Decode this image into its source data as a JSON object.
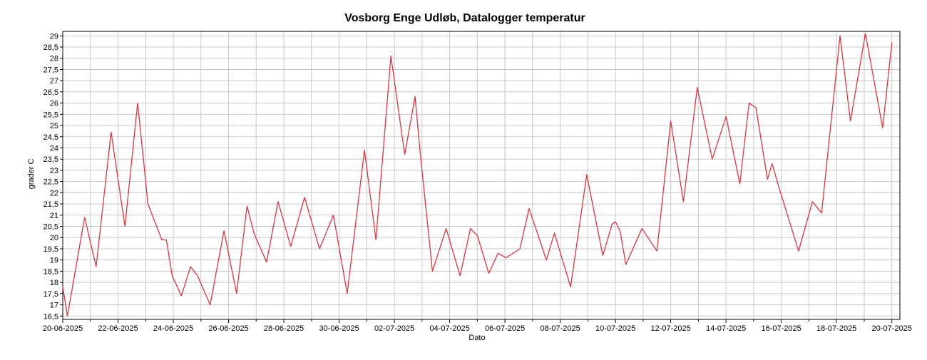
{
  "chart_data": {
    "type": "line",
    "title": "Vosborg Enge Udløb, Datalogger temperatur",
    "xlabel": "Dato",
    "ylabel": "grader C",
    "grid": true,
    "minor_grid": true,
    "xlim": [
      "2025-06-20T00:00",
      "2025-07-20T07:00"
    ],
    "ylim": [
      16.35,
      29.2
    ],
    "xticks": [
      {
        "value": "2025-06-20T00:00",
        "label": "20-06-2025"
      },
      {
        "value": "2025-06-22T00:00",
        "label": "22-06-2025"
      },
      {
        "value": "2025-06-24T00:00",
        "label": "24-06-2025"
      },
      {
        "value": "2025-06-26T00:00",
        "label": "26-06-2025"
      },
      {
        "value": "2025-06-28T00:00",
        "label": "28-06-2025"
      },
      {
        "value": "2025-06-30T00:00",
        "label": "30-06-2025"
      },
      {
        "value": "2025-07-02T00:00",
        "label": "02-07-2025"
      },
      {
        "value": "2025-07-04T00:00",
        "label": "04-07-2025"
      },
      {
        "value": "2025-07-06T00:00",
        "label": "06-07-2025"
      },
      {
        "value": "2025-07-08T00:00",
        "label": "08-07-2025"
      },
      {
        "value": "2025-07-10T00:00",
        "label": "10-07-2025"
      },
      {
        "value": "2025-07-12T00:00",
        "label": "12-07-2025"
      },
      {
        "value": "2025-07-14T00:00",
        "label": "14-07-2025"
      },
      {
        "value": "2025-07-16T00:00",
        "label": "16-07-2025"
      },
      {
        "value": "2025-07-18T00:00",
        "label": "18-07-2025"
      },
      {
        "value": "2025-07-20T00:00",
        "label": "20-07-2025"
      }
    ],
    "yticks": [
      {
        "value": 16.5,
        "label": "16,5"
      },
      17,
      {
        "value": 17.5,
        "label": "17,5"
      },
      18,
      {
        "value": 18.5,
        "label": "18,5"
      },
      19,
      {
        "value": 19.5,
        "label": "19,5"
      },
      20,
      {
        "value": 20.5,
        "label": "20,5"
      },
      21,
      {
        "value": 21.5,
        "label": "21,5"
      },
      22,
      {
        "value": 22.5,
        "label": "22,5"
      },
      23,
      {
        "value": 23.5,
        "label": "23,5"
      },
      24,
      {
        "value": 24.5,
        "label": "24,5"
      },
      25,
      {
        "value": 25.5,
        "label": "25,5"
      },
      26,
      {
        "value": 26.5,
        "label": "26,5"
      },
      27,
      {
        "value": 27.5,
        "label": "27,5"
      },
      28,
      {
        "value": 28.5,
        "label": "28,5"
      },
      29
    ],
    "x": [
      "2025-06-20T00:00",
      "2025-06-20T04:00",
      "2025-06-20T19:00",
      "2025-06-21T05:00",
      "2025-06-21T18:00",
      "2025-06-22T06:00",
      "2025-06-22T17:00",
      "2025-06-23T02:00",
      "2025-06-23T14:00",
      "2025-06-23T18:00",
      "2025-06-23T23:00",
      "2025-06-24T07:00",
      "2025-06-24T15:00",
      "2025-06-24T21:00",
      "2025-06-25T08:00",
      "2025-06-25T20:00",
      "2025-06-26T07:00",
      "2025-06-26T16:00",
      "2025-06-26T22:00",
      "2025-06-27T09:00",
      "2025-06-27T19:00",
      "2025-06-28T06:00",
      "2025-06-28T18:00",
      "2025-06-29T07:00",
      "2025-06-29T19:00",
      "2025-06-30T07:00",
      "2025-06-30T22:00",
      "2025-07-01T08:00",
      "2025-07-01T21:00",
      "2025-07-02T09:00",
      "2025-07-02T18:00",
      "2025-07-02T22:00",
      "2025-07-03T09:00",
      "2025-07-03T21:00",
      "2025-07-04T09:00",
      "2025-07-04T18:00",
      "2025-07-05T00:00",
      "2025-07-05T10:00",
      "2025-07-05T18:00",
      "2025-07-06T01:00",
      "2025-07-06T07:00",
      "2025-07-06T13:00",
      "2025-07-06T21:00",
      "2025-07-07T12:00",
      "2025-07-07T19:00",
      "2025-07-08T09:00",
      "2025-07-08T23:00",
      "2025-07-09T13:00",
      "2025-07-09T21:00",
      "2025-07-10T00:00",
      "2025-07-10T04:00",
      "2025-07-10T09:00",
      "2025-07-10T23:00",
      "2025-07-11T12:00",
      "2025-07-12T00:00",
      "2025-07-12T11:00",
      "2025-07-12T23:00",
      "2025-07-13T12:00",
      "2025-07-14T00:00",
      "2025-07-14T12:00",
      "2025-07-14T20:00",
      "2025-07-15T02:00",
      "2025-07-15T12:00",
      "2025-07-15T16:00",
      "2025-07-15T21:00",
      "2025-07-16T15:00",
      "2025-07-17T03:00",
      "2025-07-17T11:00",
      "2025-07-18T03:00",
      "2025-07-18T12:00",
      "2025-07-19T01:00",
      "2025-07-19T16:00",
      "2025-07-20T00:00"
    ],
    "series": [
      {
        "name": "temperatur",
        "color": "#e0343c",
        "values": [
          17.8,
          16.5,
          20.9,
          18.7,
          24.7,
          20.5,
          26.0,
          21.5,
          19.9,
          19.9,
          18.3,
          17.4,
          18.7,
          18.3,
          17.0,
          20.3,
          17.5,
          21.4,
          20.2,
          18.9,
          21.6,
          19.6,
          21.8,
          19.5,
          21.0,
          17.5,
          23.9,
          19.9,
          28.1,
          23.7,
          26.3,
          24.0,
          18.5,
          20.4,
          18.3,
          20.4,
          20.1,
          18.4,
          19.3,
          19.1,
          19.3,
          19.5,
          21.3,
          19.0,
          20.2,
          17.8,
          22.8,
          19.2,
          20.6,
          20.7,
          20.3,
          18.8,
          20.4,
          19.4,
          25.2,
          21.6,
          26.7,
          23.5,
          25.4,
          22.4,
          26.0,
          25.8,
          22.6,
          23.3,
          22.4,
          19.4,
          21.6,
          21.1,
          29.0,
          25.2,
          29.1,
          24.9,
          28.7
        ]
      }
    ]
  }
}
